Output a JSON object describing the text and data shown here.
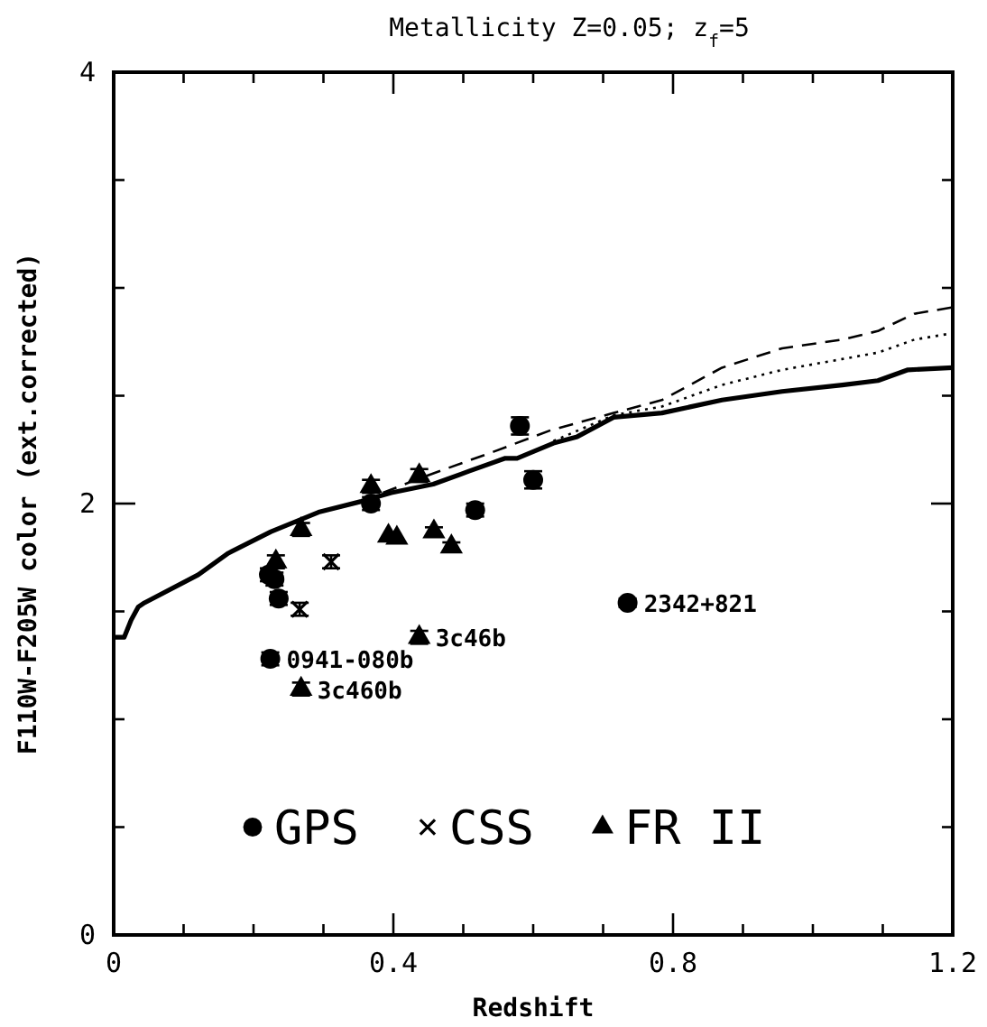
{
  "chart_data": {
    "type": "scatter",
    "title": "Metallicity Z=0.05; z$_{f}$=5",
    "xlabel": "Redshift",
    "ylabel": "F110W-F205W color (ext.corrected)",
    "xlim": [
      0,
      1.2
    ],
    "ylim": [
      0,
      4
    ],
    "xticks": [
      0,
      {
        "value": 0.1,
        "label": null
      },
      {
        "value": 0.2,
        "label": null
      },
      {
        "value": 0.3,
        "label": null
      },
      0.4,
      {
        "value": 0.5,
        "label": null
      },
      {
        "value": 0.6,
        "label": null
      },
      {
        "value": 0.7,
        "label": null
      },
      0.8,
      {
        "value": 0.9,
        "label": null
      },
      {
        "value": 1.0,
        "label": null
      },
      {
        "value": 1.1,
        "label": null
      },
      1.2
    ],
    "yticks": [
      0,
      {
        "value": 0.5,
        "label": null
      },
      {
        "value": 1,
        "label": null
      },
      {
        "value": 1.5,
        "label": null
      },
      2,
      {
        "value": 2.5,
        "label": null
      },
      {
        "value": 3,
        "label": null
      },
      {
        "value": 3.5,
        "label": null
      },
      4
    ],
    "grid": false,
    "legend": "bottom",
    "series": [
      {
        "type": "line",
        "color": "#000000",
        "line_style": "solid",
        "x": [
          0,
          0.015,
          0.025,
          0.035,
          0.044,
          0.121,
          0.164,
          0.225,
          0.293,
          0.354,
          0.397,
          0.457,
          0.508,
          0.56,
          0.577,
          0.629,
          0.663,
          0.715,
          0.784,
          0.87,
          0.956,
          1.042,
          1.093,
          1.136,
          1.2
        ],
        "values": [
          1.38,
          1.38,
          1.46,
          1.52,
          1.54,
          1.67,
          1.77,
          1.87,
          1.96,
          2.01,
          2.05,
          2.09,
          2.15,
          2.21,
          2.21,
          2.28,
          2.31,
          2.4,
          2.42,
          2.48,
          2.52,
          2.55,
          2.57,
          2.62,
          2.63
        ]
      },
      {
        "type": "line",
        "color": "#000000",
        "line_style": "dashed",
        "x": [
          0.354,
          0.44,
          0.543,
          0.625,
          0.715,
          0.784,
          0.87,
          0.956,
          1.042,
          1.093,
          1.145,
          1.2
        ],
        "values": [
          2.01,
          2.12,
          2.24,
          2.34,
          2.42,
          2.48,
          2.63,
          2.72,
          2.76,
          2.8,
          2.88,
          2.91
        ]
      },
      {
        "type": "line",
        "color": "#000000",
        "line_style": "dotted",
        "x": [
          0.629,
          0.715,
          0.784,
          0.87,
          0.956,
          1.042,
          1.093,
          1.145,
          1.2
        ],
        "values": [
          2.29,
          2.41,
          2.45,
          2.55,
          2.62,
          2.67,
          2.7,
          2.76,
          2.79
        ]
      },
      {
        "name": "GPS",
        "color": "#000000",
        "marker": "circle",
        "x": [
          0.222,
          0.23,
          0.236,
          0.224,
          0.368,
          0.517,
          0.581,
          0.6,
          0.735
        ],
        "values": [
          1.67,
          1.65,
          1.56,
          1.28,
          2.0,
          1.97,
          2.36,
          2.11,
          1.54
        ],
        "errors": [
          0.03,
          0.03,
          0.03,
          0.03,
          0.03,
          0.03,
          0.04,
          0.04,
          0.02
        ]
      },
      {
        "name": "CSS",
        "color": "#000000",
        "marker": "cross",
        "x": [
          0.266,
          0.311
        ],
        "values": [
          1.51,
          1.73
        ],
        "errors": [
          0.03,
          0.03
        ]
      },
      {
        "name": "FR II",
        "color": "#000000",
        "marker": "triangle",
        "x": [
          0.232,
          0.268,
          0.368,
          0.437,
          0.393,
          0.405,
          0.458,
          0.483,
          0.437,
          0.268
        ],
        "values": [
          1.73,
          1.88,
          2.08,
          2.13,
          1.85,
          1.84,
          1.87,
          1.8,
          1.38,
          1.14
        ],
        "errors": [
          0.03,
          0.03,
          0.03,
          0.03,
          null,
          null,
          0.02,
          0.02,
          0.03,
          0.03
        ]
      }
    ],
    "annotations": [
      {
        "text": "0941-080b",
        "x": 0.224,
        "y": 1.28
      },
      {
        "text": "3c460b",
        "x": 0.268,
        "y": 1.14
      },
      {
        "text": "3c46b",
        "x": 0.437,
        "y": 1.38
      },
      {
        "text": "2342+821",
        "x": 0.735,
        "y": 1.54
      }
    ]
  }
}
